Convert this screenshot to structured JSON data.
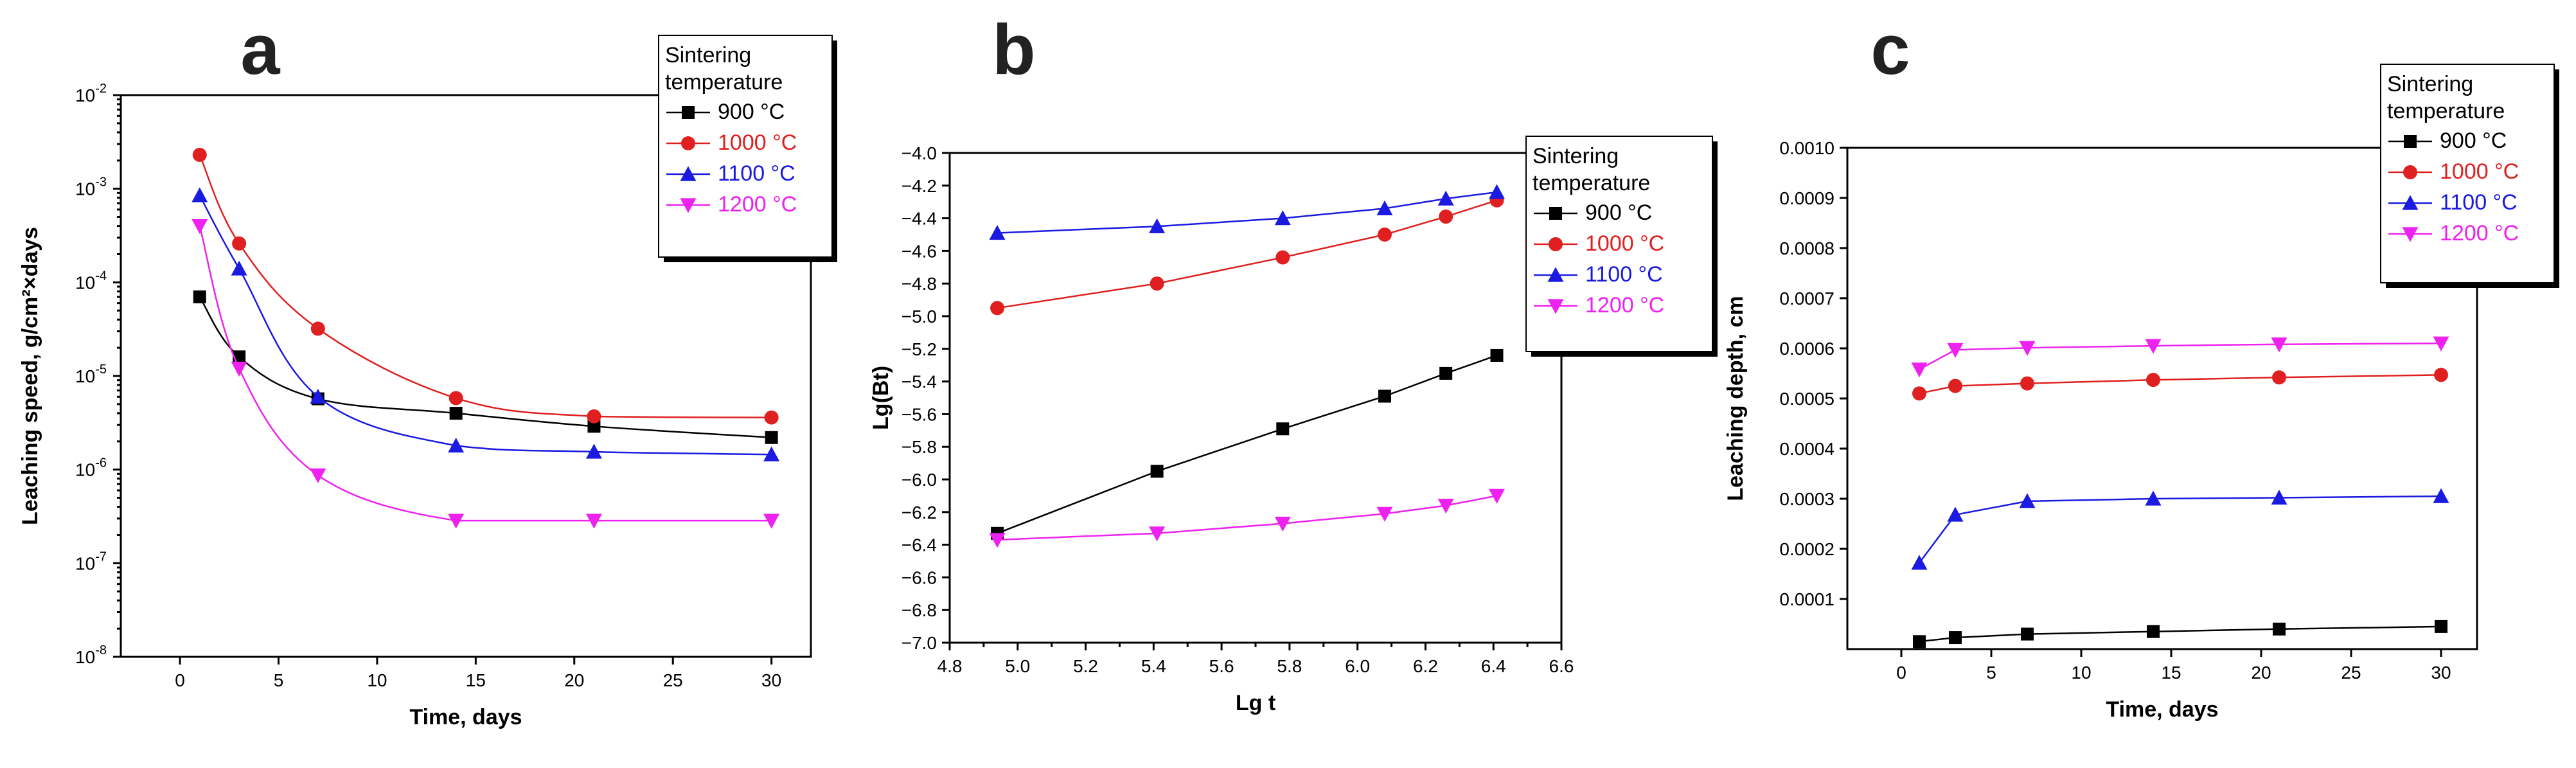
{
  "chart_data": [
    {
      "type": "line",
      "panel_label": "a",
      "title": "",
      "xlabel": "Time, days",
      "ylabel": "Leaching speed, g/cm²×days",
      "xlim": [
        -3,
        32
      ],
      "xticks": [
        0,
        5,
        10,
        15,
        20,
        25,
        30
      ],
      "yscale": "log",
      "ylim_exp": [
        -8,
        -2
      ],
      "ytick_labels": [
        {
          "base": "10",
          "exp": "-8"
        },
        {
          "base": "10",
          "exp": "-7"
        },
        {
          "base": "10",
          "exp": "-6"
        },
        {
          "base": "10",
          "exp": "-5"
        },
        {
          "base": "10",
          "exp": "-4"
        },
        {
          "base": "10",
          "exp": "-3"
        },
        {
          "base": "10",
          "exp": "-2"
        }
      ],
      "grid": false,
      "legend_title": [
        "Sintering",
        "temperature"
      ],
      "legend_position": "top-right",
      "series": [
        {
          "name": "900 °C",
          "x": [
            1,
            3,
            7,
            14,
            21,
            30
          ],
          "values": [
            7e-05,
            1.6e-05,
            5.7e-06,
            4e-06,
            2.9e-06,
            2.2e-06
          ]
        },
        {
          "name": "1000 °C",
          "x": [
            1,
            3,
            7,
            14,
            21,
            30
          ],
          "values": [
            0.0023,
            0.00026,
            3.2e-05,
            5.8e-06,
            3.7e-06,
            3.6e-06
          ]
        },
        {
          "name": "1100 °C",
          "x": [
            1,
            3,
            7,
            14,
            21,
            30
          ],
          "values": [
            0.00085,
            0.00014,
            6e-06,
            1.8e-06,
            1.55e-06,
            1.45e-06
          ]
        },
        {
          "name": "1200 °C",
          "x": [
            1,
            3,
            7,
            14,
            21,
            30
          ],
          "values": [
            0.0004,
            1.2e-05,
            8.7e-07,
            2.85e-07,
            2.85e-07,
            2.85e-07
          ]
        }
      ]
    },
    {
      "type": "line",
      "panel_label": "b",
      "title": "",
      "xlabel": "Lg t",
      "ylabel": "Lg(Bt)",
      "xlim": [
        4.8,
        6.6
      ],
      "xticks": [
        4.8,
        5.0,
        5.2,
        5.4,
        5.6,
        5.8,
        6.0,
        6.2,
        6.4,
        6.6
      ],
      "ylim": [
        -7.0,
        -4.0
      ],
      "yticks": [
        -7.0,
        -6.8,
        -6.6,
        -6.4,
        -6.2,
        -6.0,
        -5.8,
        -5.6,
        -5.4,
        -5.2,
        -5.0,
        -4.8,
        -4.6,
        -4.4,
        -4.2,
        -4.0
      ],
      "grid": false,
      "legend_title": [
        "Sintering",
        "temperature"
      ],
      "legend_position": "right",
      "series": [
        {
          "name": "900 °C",
          "x": [
            4.94,
            5.41,
            5.78,
            6.08,
            6.26,
            6.41
          ],
          "values": [
            -6.33,
            -5.95,
            -5.69,
            -5.49,
            -5.35,
            -5.24
          ]
        },
        {
          "name": "1000 °C",
          "x": [
            4.94,
            5.41,
            5.78,
            6.08,
            6.26,
            6.41
          ],
          "values": [
            -4.95,
            -4.8,
            -4.64,
            -4.5,
            -4.39,
            -4.29
          ]
        },
        {
          "name": "1100 °C",
          "x": [
            4.94,
            5.41,
            5.78,
            6.08,
            6.26,
            6.41
          ],
          "values": [
            -4.49,
            -4.45,
            -4.4,
            -4.34,
            -4.28,
            -4.24
          ]
        },
        {
          "name": "1200 °C",
          "x": [
            4.94,
            5.41,
            5.78,
            6.08,
            6.26,
            6.41
          ],
          "values": [
            -6.37,
            -6.33,
            -6.27,
            -6.21,
            -6.16,
            -6.1
          ]
        }
      ]
    },
    {
      "type": "line",
      "panel_label": "c",
      "title": "",
      "xlabel": "Time, days",
      "ylabel": "Leaching depth, cm",
      "xlim": [
        -3,
        32
      ],
      "xticks": [
        0,
        5,
        10,
        15,
        20,
        25,
        30
      ],
      "ylim": [
        0,
        0.001
      ],
      "yticks": [
        "0.0001",
        "0.0002",
        "0.0003",
        "0.0004",
        "0.0005",
        "0.0006",
        "0.0007",
        "0.0008",
        "0.0009",
        "0.0010"
      ],
      "grid": false,
      "legend_title": [
        "Sintering",
        "temperature"
      ],
      "legend_position": "top-right",
      "series": [
        {
          "name": "900 °C",
          "x": [
            1,
            3,
            7,
            14,
            21,
            30
          ],
          "values": [
            1.5e-05,
            2.3e-05,
            3e-05,
            3.5e-05,
            4e-05,
            4.5e-05
          ]
        },
        {
          "name": "1000 °C",
          "x": [
            1,
            3,
            7,
            14,
            21,
            30
          ],
          "values": [
            0.00051,
            0.000525,
            0.00053,
            0.000537,
            0.000542,
            0.000547
          ]
        },
        {
          "name": "1100 °C",
          "x": [
            1,
            3,
            7,
            14,
            21,
            30
          ],
          "values": [
            0.000172,
            0.000268,
            0.000295,
            0.0003,
            0.000302,
            0.000305
          ]
        },
        {
          "name": "1200 °C",
          "x": [
            1,
            3,
            7,
            14,
            21,
            30
          ],
          "values": [
            0.000558,
            0.000597,
            0.000601,
            0.000605,
            0.000608,
            0.00061
          ]
        }
      ]
    }
  ],
  "series_styles": [
    {
      "color": "#000000",
      "marker": "square"
    },
    {
      "color": "#e02020",
      "marker": "circle"
    },
    {
      "color": "#1a1ae0",
      "marker": "triangle-up"
    },
    {
      "color": "#ee22ee",
      "marker": "triangle-down"
    }
  ]
}
